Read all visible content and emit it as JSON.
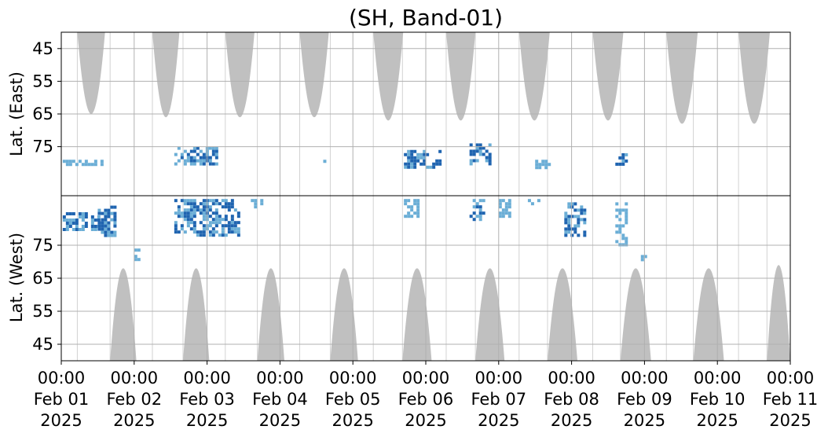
{
  "chart_data": {
    "type": "heatmap",
    "title": "(SH, Band-01)",
    "xlabel": "",
    "ylabel_top": "Lat. (East)",
    "ylabel_bottom": "Lat. (West)",
    "x_range": [
      "2025-02-01T00:00",
      "2025-02-11T00:00"
    ],
    "x_ticks": [
      {
        "time": "00:00",
        "date": "Feb 01",
        "year": "2025"
      },
      {
        "time": "00:00",
        "date": "Feb 02",
        "year": "2025"
      },
      {
        "time": "00:00",
        "date": "Feb 03",
        "year": "2025"
      },
      {
        "time": "00:00",
        "date": "Feb 04",
        "year": "2025"
      },
      {
        "time": "00:00",
        "date": "Feb 05",
        "year": "2025"
      },
      {
        "time": "00:00",
        "date": "Feb 06",
        "year": "2025"
      },
      {
        "time": "00:00",
        "date": "Feb 07",
        "year": "2025"
      },
      {
        "time": "00:00",
        "date": "Feb 08",
        "year": "2025"
      },
      {
        "time": "00:00",
        "date": "Feb 09",
        "year": "2025"
      },
      {
        "time": "00:00",
        "date": "Feb 10",
        "year": "2025"
      },
      {
        "time": "00:00",
        "date": "Feb 11",
        "year": "2025"
      }
    ],
    "y_ticks_east": [
      "45",
      "55",
      "65",
      "75"
    ],
    "y_ticks_west": [
      "75",
      "65",
      "55",
      "45"
    ],
    "lat_range": [
      40,
      90
    ],
    "grid": true,
    "colors": {
      "shade": "#c0c0c0",
      "activity_light": "#6baed6",
      "activity_dark": "#1f64b0",
      "grid": "#b0b0b0"
    },
    "shaded_east": [
      {
        "start": 0.22,
        "end": 0.6,
        "min_lat": 65
      },
      {
        "start": 1.25,
        "end": 1.62,
        "min_lat": 66
      },
      {
        "start": 2.25,
        "end": 2.65,
        "min_lat": 66
      },
      {
        "start": 3.27,
        "end": 3.67,
        "min_lat": 66
      },
      {
        "start": 4.28,
        "end": 4.69,
        "min_lat": 67
      },
      {
        "start": 5.28,
        "end": 5.68,
        "min_lat": 67
      },
      {
        "start": 6.28,
        "end": 6.7,
        "min_lat": 67
      },
      {
        "start": 7.29,
        "end": 7.71,
        "min_lat": 67
      },
      {
        "start": 8.3,
        "end": 8.73,
        "min_lat": 68
      },
      {
        "start": 9.29,
        "end": 9.72,
        "min_lat": 68
      }
    ],
    "shaded_west": [
      {
        "start": 0.67,
        "end": 1.03,
        "min_lat": 68
      },
      {
        "start": 1.67,
        "end": 2.03,
        "min_lat": 68
      },
      {
        "start": 2.69,
        "end": 3.06,
        "min_lat": 68
      },
      {
        "start": 3.69,
        "end": 4.07,
        "min_lat": 68
      },
      {
        "start": 4.68,
        "end": 5.08,
        "min_lat": 68
      },
      {
        "start": 5.68,
        "end": 6.08,
        "min_lat": 68
      },
      {
        "start": 6.67,
        "end": 7.08,
        "min_lat": 68
      },
      {
        "start": 7.67,
        "end": 8.09,
        "min_lat": 68
      },
      {
        "start": 8.67,
        "end": 9.09,
        "min_lat": 68
      },
      {
        "start": 9.68,
        "end": 10.0,
        "min_lat": 69
      }
    ],
    "activity_clusters": [
      {
        "hemi": "east",
        "t0": 0.02,
        "t1": 0.55,
        "lat0": 79,
        "lat1": 80,
        "level": 1
      },
      {
        "hemi": "west",
        "t0": 0.02,
        "t1": 0.5,
        "lat0": 80,
        "lat1": 85,
        "level": 2
      },
      {
        "hemi": "west",
        "t0": 0.5,
        "t1": 0.75,
        "lat0": 78,
        "lat1": 87,
        "level": 2
      },
      {
        "hemi": "west",
        "t0": 1.0,
        "t1": 1.08,
        "lat0": 71,
        "lat1": 74,
        "level": 1
      },
      {
        "hemi": "east",
        "t0": 1.55,
        "t1": 2.15,
        "lat0": 75,
        "lat1": 80,
        "level": 2
      },
      {
        "hemi": "west",
        "t0": 1.55,
        "t1": 2.45,
        "lat0": 78,
        "lat1": 89,
        "level": 2
      },
      {
        "hemi": "west",
        "t0": 2.6,
        "t1": 2.75,
        "lat0": 87,
        "lat1": 89,
        "level": 1
      },
      {
        "hemi": "east",
        "t0": 3.55,
        "t1": 3.65,
        "lat0": 79,
        "lat1": 81,
        "level": 1
      },
      {
        "hemi": "east",
        "t0": 4.7,
        "t1": 5.2,
        "lat0": 76,
        "lat1": 81,
        "level": 2
      },
      {
        "hemi": "west",
        "t0": 4.7,
        "t1": 4.9,
        "lat0": 84,
        "lat1": 89,
        "level": 1
      },
      {
        "hemi": "east",
        "t0": 5.6,
        "t1": 5.9,
        "lat0": 74,
        "lat1": 80,
        "level": 2
      },
      {
        "hemi": "west",
        "t0": 5.6,
        "t1": 5.8,
        "lat0": 83,
        "lat1": 89,
        "level": 2
      },
      {
        "hemi": "west",
        "t0": 6.0,
        "t1": 6.15,
        "lat0": 84,
        "lat1": 89,
        "level": 1
      },
      {
        "hemi": "east",
        "t0": 6.5,
        "t1": 6.7,
        "lat0": 79,
        "lat1": 81,
        "level": 1
      },
      {
        "hemi": "west",
        "t0": 6.4,
        "t1": 6.55,
        "lat0": 88,
        "lat1": 89,
        "level": 1
      },
      {
        "hemi": "west",
        "t0": 6.9,
        "t1": 7.2,
        "lat0": 78,
        "lat1": 88,
        "level": 2
      },
      {
        "hemi": "east",
        "t0": 7.6,
        "t1": 7.75,
        "lat0": 77,
        "lat1": 80,
        "level": 2
      },
      {
        "hemi": "west",
        "t0": 7.6,
        "t1": 7.75,
        "lat0": 75,
        "lat1": 88,
        "level": 1
      },
      {
        "hemi": "west",
        "t0": 7.95,
        "t1": 8.02,
        "lat0": 71,
        "lat1": 73,
        "level": 1
      }
    ]
  }
}
